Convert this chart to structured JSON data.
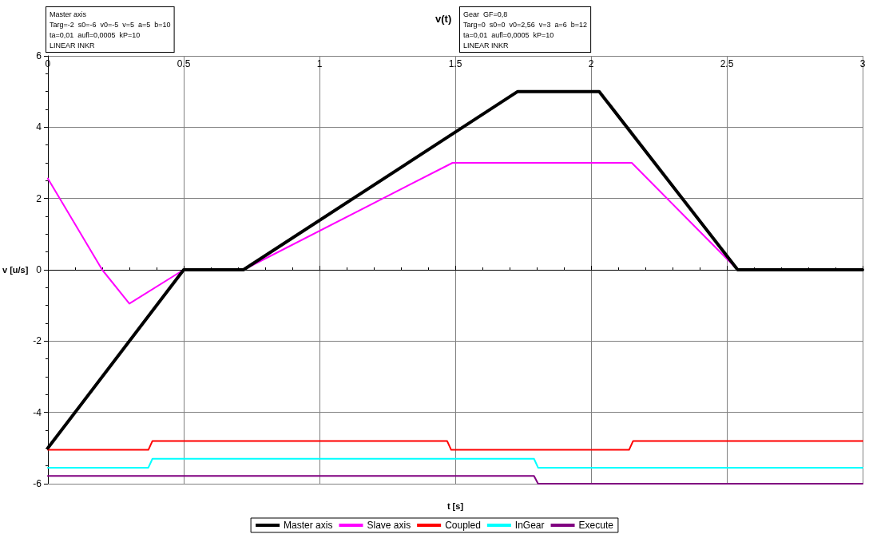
{
  "chart_data": {
    "type": "line",
    "title": "v(t)",
    "xlabel": "t [s]",
    "ylabel": "v [u/s]",
    "annotations": [
      "Master axis\nTarg=-2  s0=-6  v0=-5  v=5  a=5  b=10\nta=0,01  aufl=0,0005  kP=10\nLINEAR INKR",
      "Gear  GF=0,8\nTarg=0  s0=0  v0=2,56  v=3  a=6  b=12\nta=0,01  aufl=0,0005  kP=10\nLINEAR INKR"
    ],
    "series": [
      {
        "name": "Master axis",
        "color": "#000000",
        "x": [
          0,
          0.5,
          0.72,
          1.73,
          2.03,
          2.54,
          3
        ],
        "values": [
          -5,
          0,
          0,
          5,
          5,
          0,
          0
        ]
      },
      {
        "name": "Slave axis",
        "color": "#ff00ff",
        "x": [
          0,
          0.2,
          0.3,
          0.5,
          0.72,
          1.49,
          2.15,
          2.54,
          3
        ],
        "values": [
          2.56,
          0,
          -0.95,
          0,
          0,
          3,
          3,
          0,
          0
        ]
      },
      {
        "name": "Coupled",
        "color": "#ff0000",
        "x": [
          0,
          0.37,
          0.385,
          1.47,
          1.485,
          2.14,
          2.155,
          3
        ],
        "values": [
          -5.05,
          -5.05,
          -4.8,
          -4.8,
          -5.05,
          -5.05,
          -4.8,
          -4.8
        ]
      },
      {
        "name": "InGear",
        "color": "#00ffff",
        "x": [
          0,
          0.37,
          0.385,
          1.79,
          1.805,
          3
        ],
        "values": [
          -5.55,
          -5.55,
          -5.3,
          -5.3,
          -5.55,
          -5.55
        ]
      },
      {
        "name": "Execute",
        "color": "#800080",
        "x": [
          0,
          1.79,
          1.805,
          3
        ],
        "values": [
          -5.78,
          -5.78,
          -6,
          -6
        ]
      }
    ],
    "xlim": [
      0,
      3
    ],
    "xticks": [
      0,
      0.5,
      1,
      1.5,
      2,
      2.5,
      3
    ],
    "ylim": [
      -6,
      6
    ],
    "yticks": [
      -6,
      -4,
      -2,
      0,
      2,
      4,
      6
    ],
    "grid": true,
    "legend": "bottom",
    "marker": "none",
    "line_style": "solid"
  }
}
